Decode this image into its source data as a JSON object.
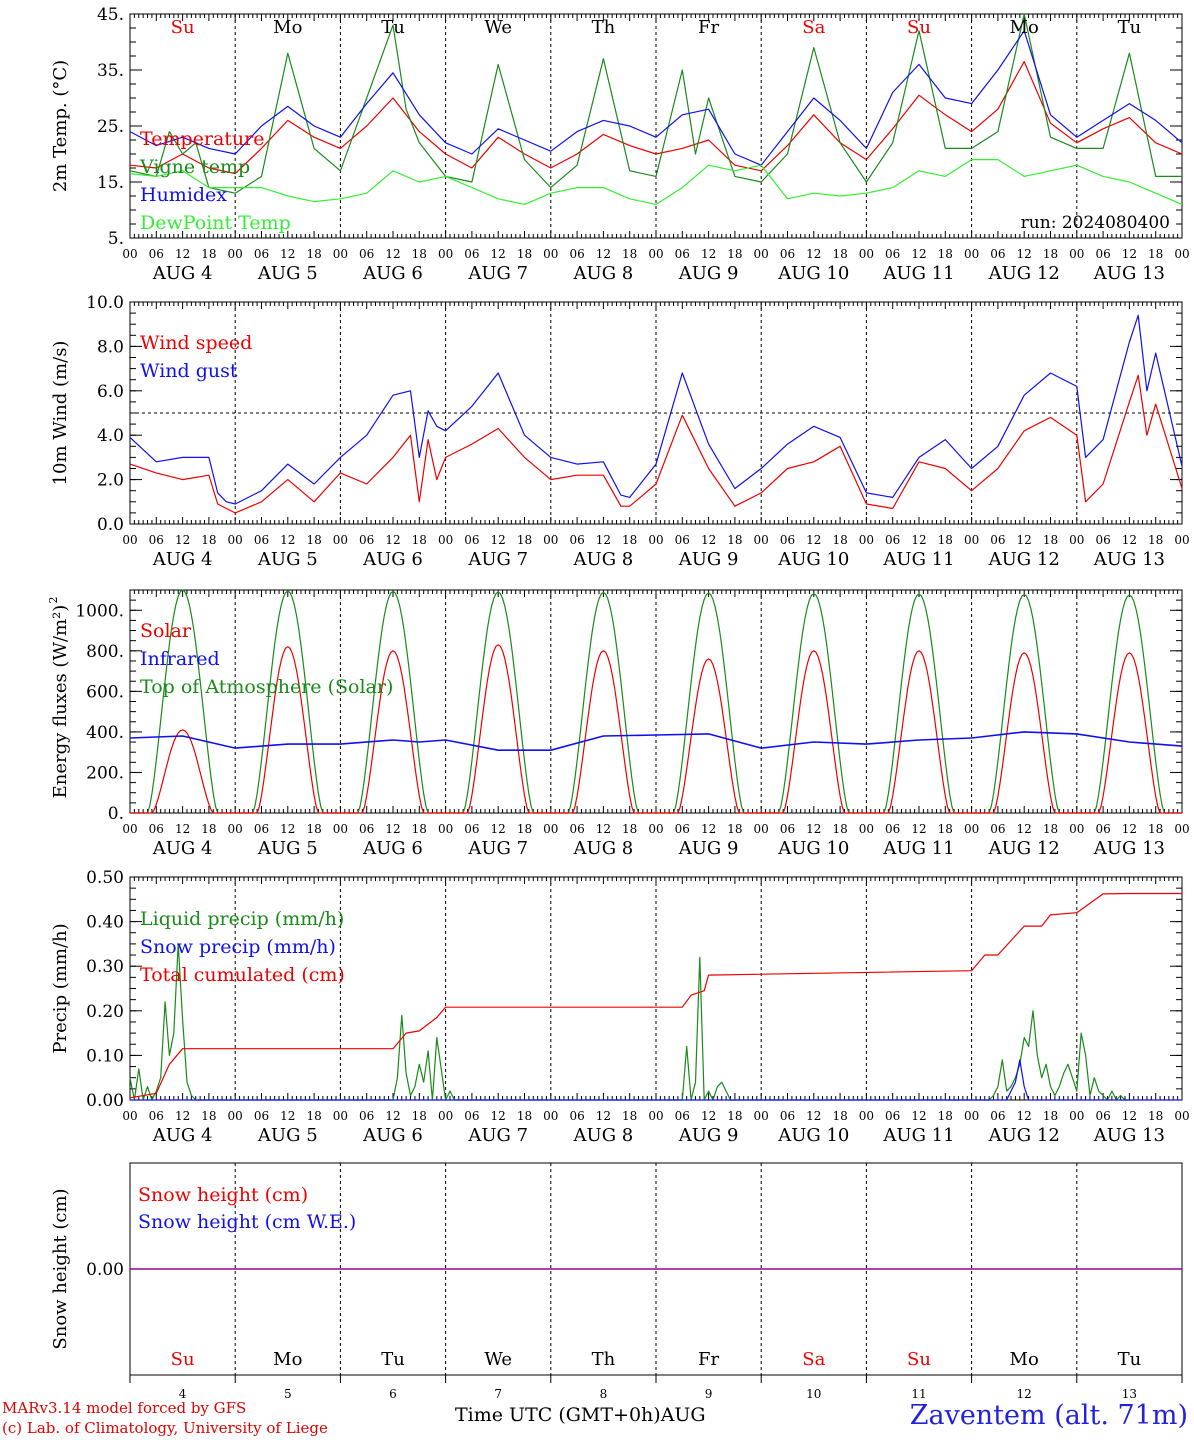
{
  "run_label": "run: 2024080400",
  "colors": {
    "red": "#ee0000",
    "green": "#1a8a1a",
    "blue": "#1010ee",
    "lightgreen": "#33ee33",
    "purple": "#990099",
    "weekend": "#ee0000",
    "weekday": "#000000",
    "station": "#2222dd"
  },
  "days": [
    {
      "abbr": "Su",
      "weekend": true,
      "date": "AUG  4",
      "num": "4"
    },
    {
      "abbr": "Mo",
      "weekend": false,
      "date": "AUG  5",
      "num": "5"
    },
    {
      "abbr": "Tu",
      "weekend": false,
      "date": "AUG  6",
      "num": "6"
    },
    {
      "abbr": "We",
      "weekend": false,
      "date": "AUG  7",
      "num": "7"
    },
    {
      "abbr": "Th",
      "weekend": false,
      "date": "AUG  8",
      "num": "8"
    },
    {
      "abbr": "Fr",
      "weekend": false,
      "date": "AUG  9",
      "num": "9"
    },
    {
      "abbr": "Sa",
      "weekend": true,
      "date": "AUG 10",
      "num": "10"
    },
    {
      "abbr": "Su",
      "weekend": true,
      "date": "AUG 11",
      "num": "11"
    },
    {
      "abbr": "Mo",
      "weekend": false,
      "date": "AUG 12",
      "num": "12"
    },
    {
      "abbr": "Tu",
      "weekend": false,
      "date": "AUG 13",
      "num": "13"
    }
  ],
  "hour_labels": [
    "00",
    "06",
    "12",
    "18"
  ],
  "final_hour_label": "00",
  "footer": {
    "credit1": "MARv3.14 model forced by GFS",
    "credit2": "(c) Lab. of Climatology, University of Liege",
    "xlabel": "Time UTC (GMT+0h)AUG",
    "station": "Zaventem (alt. 71m)"
  },
  "chart_data": [
    {
      "type": "line",
      "ylabel": "2m Temp. (°C)",
      "ylim": [
        5,
        45
      ],
      "yticks": [
        "5.",
        "15.",
        "25.",
        "35.",
        "45."
      ],
      "x_unit": "hours since AUG 4 00 UTC",
      "series": [
        {
          "name": "Temperature",
          "color": "red",
          "x": [
            0,
            6,
            12,
            18,
            24,
            30,
            36,
            42,
            48,
            54,
            60,
            66,
            72,
            78,
            84,
            90,
            96,
            102,
            108,
            114,
            120,
            126,
            132,
            138,
            144,
            150,
            156,
            162,
            168,
            174,
            180,
            186,
            192,
            198,
            204,
            210,
            216,
            222,
            228,
            234,
            240
          ],
          "values": [
            18,
            17.5,
            20,
            17.5,
            16.5,
            21,
            26,
            23,
            21,
            25,
            30,
            24,
            20,
            17.5,
            23,
            20,
            17.5,
            20,
            23.5,
            21.5,
            20,
            21,
            22.5,
            18,
            17,
            21.5,
            27,
            22,
            19,
            24.5,
            30.5,
            27,
            24,
            28,
            36.5,
            25.5,
            22,
            24.5,
            26.5,
            22,
            20
          ]
        },
        {
          "name": "Vigne temp",
          "color": "green",
          "x": [
            0,
            6,
            9,
            12,
            15,
            18,
            24,
            30,
            36,
            42,
            48,
            54,
            60,
            63,
            66,
            72,
            78,
            84,
            90,
            96,
            102,
            108,
            114,
            120,
            126,
            129,
            132,
            138,
            144,
            150,
            156,
            162,
            168,
            174,
            180,
            186,
            192,
            198,
            204,
            210,
            216,
            222,
            228,
            234,
            240
          ],
          "values": [
            17,
            16,
            24,
            20,
            22,
            14,
            13,
            16,
            38,
            21,
            17,
            30,
            43,
            28,
            22,
            16,
            15,
            36,
            19,
            14,
            18,
            37,
            17,
            16,
            35,
            20,
            30,
            16,
            15,
            20,
            39,
            22,
            15,
            22,
            42,
            21,
            21,
            24,
            45,
            23,
            21,
            21,
            38,
            16,
            16
          ]
        },
        {
          "name": "Humidex",
          "color": "blue",
          "x": [
            0,
            6,
            12,
            18,
            24,
            30,
            36,
            42,
            48,
            54,
            60,
            66,
            72,
            78,
            84,
            90,
            96,
            102,
            108,
            114,
            120,
            126,
            132,
            138,
            144,
            150,
            156,
            162,
            168,
            174,
            180,
            186,
            192,
            198,
            204,
            210,
            216,
            222,
            228,
            234,
            240
          ],
          "values": [
            24,
            21.5,
            23,
            21,
            20,
            25,
            28.5,
            25,
            23,
            29,
            34.5,
            27,
            22,
            20,
            24.5,
            22.5,
            20.5,
            24,
            26,
            25,
            23,
            27,
            28,
            20,
            18,
            24,
            30,
            26,
            21,
            31,
            36,
            30,
            29,
            35,
            42,
            27,
            23,
            26,
            29,
            26,
            22
          ]
        },
        {
          "name": "DewPoint Temp",
          "color": "lightgreen",
          "x": [
            0,
            6,
            12,
            18,
            24,
            30,
            36,
            42,
            48,
            54,
            60,
            66,
            72,
            78,
            84,
            90,
            96,
            102,
            108,
            114,
            120,
            126,
            132,
            138,
            144,
            150,
            156,
            162,
            168,
            174,
            180,
            186,
            192,
            198,
            204,
            210,
            216,
            222,
            228,
            234,
            240
          ],
          "values": [
            16.5,
            16,
            17,
            14,
            14,
            14,
            12.5,
            11.5,
            12,
            13,
            17,
            15,
            16,
            14,
            12,
            11,
            13,
            14,
            14,
            12,
            11,
            14,
            18,
            17,
            18,
            12,
            13,
            12.5,
            13,
            14,
            17,
            16,
            19,
            19,
            16,
            17,
            18,
            16,
            15,
            13,
            11
          ]
        }
      ]
    },
    {
      "type": "line",
      "ylabel": "10m Wind (m/s)",
      "ylim": [
        0,
        10
      ],
      "yticks": [
        "0.0",
        "2.0",
        "4.0",
        "6.0",
        "8.0",
        "10.0"
      ],
      "x_unit": "hours since AUG 4 00 UTC",
      "reference_line": 5.0,
      "series": [
        {
          "name": "Wind speed",
          "color": "red",
          "x": [
            0,
            6,
            12,
            18,
            20,
            22,
            24,
            30,
            36,
            42,
            48,
            54,
            60,
            64,
            66,
            68,
            70,
            72,
            78,
            84,
            90,
            96,
            102,
            108,
            112,
            114,
            120,
            126,
            132,
            138,
            144,
            150,
            156,
            162,
            168,
            174,
            180,
            186,
            192,
            198,
            204,
            210,
            216,
            218,
            222,
            228,
            230,
            232,
            234,
            240
          ],
          "values": [
            2.7,
            2.3,
            2,
            2.2,
            0.9,
            0.7,
            0.5,
            1,
            2,
            1,
            2.3,
            1.8,
            3,
            4,
            1,
            3.8,
            2,
            3,
            3.6,
            4.3,
            3,
            2,
            2.2,
            2.2,
            0.8,
            0.8,
            1.8,
            4.9,
            2.5,
            0.8,
            1.4,
            2.5,
            2.8,
            3.5,
            0.9,
            0.7,
            2.8,
            2.5,
            1.5,
            2.5,
            4.2,
            4.8,
            4,
            1,
            1.8,
            5.5,
            6.7,
            4,
            5.4,
            1.6
          ]
        },
        {
          "name": "Wind gust",
          "color": "blue",
          "x": [
            0,
            6,
            12,
            18,
            20,
            22,
            24,
            30,
            36,
            42,
            48,
            54,
            60,
            64,
            66,
            68,
            70,
            72,
            78,
            84,
            90,
            96,
            102,
            108,
            112,
            114,
            120,
            126,
            132,
            138,
            144,
            150,
            156,
            162,
            168,
            174,
            180,
            186,
            192,
            198,
            204,
            210,
            216,
            218,
            222,
            228,
            230,
            232,
            234,
            240
          ],
          "values": [
            3.9,
            2.8,
            3,
            3,
            1.4,
            1,
            0.9,
            1.5,
            2.7,
            1.8,
            3,
            4,
            5.8,
            6,
            3,
            5.1,
            4.4,
            4.2,
            5.3,
            6.8,
            4,
            3,
            2.7,
            2.8,
            1.3,
            1.2,
            2.7,
            6.8,
            3.6,
            1.6,
            2.5,
            3.6,
            4.4,
            3.9,
            1.4,
            1.2,
            3,
            3.8,
            2.5,
            3.5,
            5.8,
            6.8,
            6.2,
            3,
            3.8,
            8.2,
            9.4,
            6,
            7.7,
            2.6
          ]
        }
      ]
    },
    {
      "type": "line",
      "ylabel": "Energy fluxes (W/m²)",
      "ylim": [
        0,
        1100
      ],
      "yticks": [
        "0.",
        "200.",
        "400.",
        "600.",
        "800.",
        "1000."
      ],
      "x_unit": "hours since AUG 4 00 UTC",
      "series": [
        {
          "name": "Solar",
          "color": "red",
          "daily_peak_12utc": [
            410,
            820,
            800,
            830,
            800,
            760,
            800,
            800,
            790,
            790
          ],
          "day_length_hours": [
            5,
            19
          ]
        },
        {
          "name": "Infrared",
          "color": "blue",
          "x": [
            0,
            12,
            24,
            36,
            48,
            60,
            66,
            72,
            84,
            96,
            108,
            120,
            132,
            144,
            156,
            168,
            180,
            192,
            204,
            216,
            228,
            240
          ],
          "values": [
            370,
            380,
            320,
            340,
            340,
            360,
            350,
            360,
            310,
            310,
            380,
            385,
            390,
            320,
            350,
            340,
            360,
            370,
            400,
            390,
            350,
            330
          ]
        },
        {
          "name": "Top of Atmosphere (Solar)",
          "color": "green",
          "daily_peak_12utc": [
            1100,
            1095,
            1093,
            1090,
            1088,
            1085,
            1082,
            1080,
            1078,
            1075
          ],
          "day_length_hours": [
            4,
            20
          ]
        }
      ]
    },
    {
      "type": "line",
      "ylabel": "Precip (mm/h)",
      "ylim": [
        0,
        0.5
      ],
      "yticks": [
        "0.00",
        "0.10",
        "0.20",
        "0.30",
        "0.40",
        "0.50"
      ],
      "x_unit": "hours since AUG 4 00 UTC",
      "series": [
        {
          "name": "Liquid precip (mm/h)",
          "color": "green",
          "x": [
            0,
            1,
            2,
            3,
            4,
            5,
            6,
            7,
            8,
            9,
            10,
            11,
            12,
            13,
            14,
            15,
            60,
            61,
            62,
            63,
            64,
            65,
            66,
            67,
            68,
            69,
            70,
            71,
            72,
            73,
            74,
            75,
            126,
            127,
            128,
            129,
            130,
            131,
            132,
            133,
            134,
            135,
            136,
            137,
            196,
            197,
            198,
            199,
            200,
            201,
            202,
            203,
            204,
            205,
            206,
            207,
            208,
            209,
            210,
            211,
            212,
            213,
            214,
            215,
            216,
            217,
            218,
            219,
            220,
            221,
            222,
            223,
            224,
            225,
            226,
            227,
            228
          ],
          "values": [
            0.05,
            0,
            0.07,
            0,
            0.03,
            0,
            0.02,
            0.05,
            0.22,
            0.1,
            0.15,
            0.35,
            0.18,
            0.04,
            0.01,
            0,
            0,
            0.05,
            0.19,
            0.06,
            0.01,
            0.03,
            0.08,
            0.04,
            0.11,
            0,
            0.14,
            0.07,
            0,
            0.02,
            0,
            0,
            0,
            0.12,
            0,
            0.04,
            0.32,
            0,
            0.02,
            0,
            0.03,
            0.04,
            0.02,
            0,
            0,
            0.01,
            0.03,
            0.09,
            0.02,
            0.03,
            0.05,
            0.08,
            0.14,
            0.12,
            0.2,
            0.1,
            0.05,
            0.08,
            0.03,
            0.01,
            0.03,
            0.06,
            0.08,
            0.05,
            0.02,
            0.15,
            0.1,
            0.01,
            0.05,
            0.02,
            0.01,
            0,
            0.02,
            0,
            0.01,
            0,
            0
          ]
        },
        {
          "name": "Snow precip (mm/h)",
          "color": "blue",
          "x": [
            0,
            200,
            201,
            202,
            203,
            204,
            205,
            240
          ],
          "values": [
            0,
            0,
            0.02,
            0.04,
            0.09,
            0.03,
            0,
            0
          ]
        },
        {
          "name": "Total cumulated (cm)",
          "color": "red",
          "x": [
            0,
            6,
            9,
            12,
            60,
            63,
            66,
            70,
            72,
            126,
            128,
            131,
            132,
            192,
            195,
            198,
            204,
            208,
            210,
            216,
            222,
            228,
            240
          ],
          "values": [
            0.005,
            0.015,
            0.08,
            0.115,
            0.115,
            0.15,
            0.155,
            0.185,
            0.208,
            0.208,
            0.235,
            0.245,
            0.28,
            0.29,
            0.325,
            0.325,
            0.39,
            0.39,
            0.415,
            0.42,
            0.462,
            0.463,
            0.463
          ]
        }
      ]
    },
    {
      "type": "line",
      "ylabel": "Snow height (cm)",
      "yticks": [
        "0.00"
      ],
      "x_unit": "hours since AUG 4 00 UTC",
      "series": [
        {
          "name": "Snow height (cm)",
          "color": "red",
          "x": [
            0,
            240
          ],
          "values": [
            0,
            0
          ]
        },
        {
          "name": "Snow height (cm W.E.)",
          "color": "blue",
          "x": [
            0,
            240
          ],
          "values": [
            0,
            0
          ]
        }
      ]
    }
  ]
}
